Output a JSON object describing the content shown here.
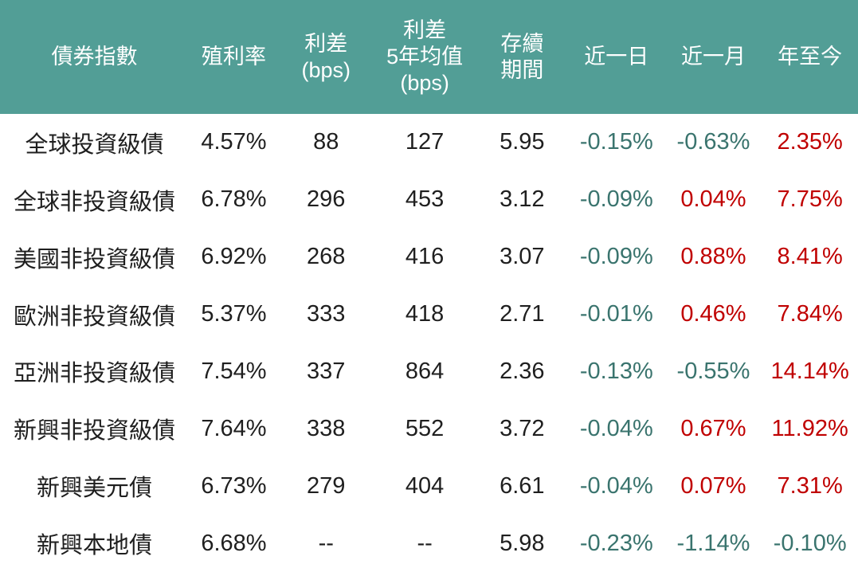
{
  "colors": {
    "header_bg": "#529e96",
    "header_text": "#ffffff",
    "value_text": "#1f1f1f",
    "negative": "#3a746e",
    "positive": "#c00000"
  },
  "chart_data": {
    "type": "table",
    "title": "",
    "columns": [
      {
        "key": "bond-index",
        "label": "債券指數"
      },
      {
        "key": "yield",
        "label": "殖利率"
      },
      {
        "key": "spread-bps",
        "label": "利差\n(bps)"
      },
      {
        "key": "spread-5y-avg-bps",
        "label": "利差\n5年均值\n(bps)"
      },
      {
        "key": "duration",
        "label": "存續\n期間"
      },
      {
        "key": "change-1d",
        "label": "近一日",
        "change": true
      },
      {
        "key": "change-1m",
        "label": "近一月",
        "change": true
      },
      {
        "key": "change-ytd",
        "label": "年至今",
        "change": true
      }
    ],
    "rows": [
      {
        "name": "全球投資級債",
        "values": [
          "4.57%",
          "88",
          "127",
          "5.95",
          "-0.15%",
          "-0.63%",
          "2.35%"
        ]
      },
      {
        "name": "全球非投資級債",
        "values": [
          "6.78%",
          "296",
          "453",
          "3.12",
          "-0.09%",
          "0.04%",
          "7.75%"
        ]
      },
      {
        "name": "美國非投資級債",
        "values": [
          "6.92%",
          "268",
          "416",
          "3.07",
          "-0.09%",
          "0.88%",
          "8.41%"
        ]
      },
      {
        "name": "歐洲非投資級債",
        "values": [
          "5.37%",
          "333",
          "418",
          "2.71",
          "-0.01%",
          "0.46%",
          "7.84%"
        ]
      },
      {
        "name": "亞洲非投資級債",
        "values": [
          "7.54%",
          "337",
          "864",
          "2.36",
          "-0.13%",
          "-0.55%",
          "14.14%"
        ]
      },
      {
        "name": "新興非投資級債",
        "values": [
          "7.64%",
          "338",
          "552",
          "3.72",
          "-0.04%",
          "0.67%",
          "11.92%"
        ]
      },
      {
        "name": "新興美元債",
        "values": [
          "6.73%",
          "279",
          "404",
          "6.61",
          "-0.04%",
          "0.07%",
          "7.31%"
        ]
      },
      {
        "name": "新興本地債",
        "values": [
          "6.68%",
          "--",
          "--",
          "5.98",
          "-0.23%",
          "-1.14%",
          "-0.10%"
        ]
      }
    ]
  }
}
